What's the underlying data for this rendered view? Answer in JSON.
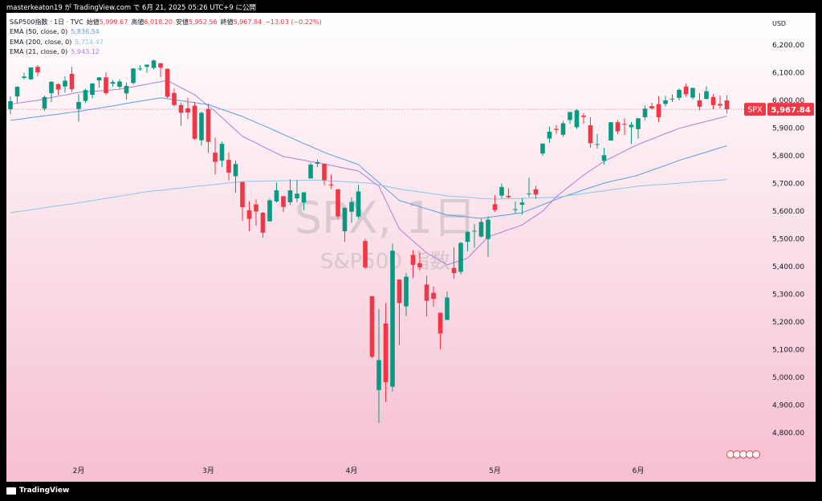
{
  "top_bar": {
    "text": "masterkeaton19 が TradingView.com で 6月 21, 2025 05:26 UTC+9 に公開"
  },
  "footer": {
    "brand": "TradingView"
  },
  "chart_data": {
    "type": "candlestick",
    "title": "S&P500指数 · 1日 · TVC",
    "legend_ohlc": [
      {
        "name": "始値",
        "value": 5999.67,
        "value_label": "5,999.67"
      },
      {
        "name": "高値",
        "value": 6018.2,
        "value_label": "6,018.20"
      },
      {
        "name": "安値",
        "value": 5952.56,
        "value_label": "5,952.56"
      },
      {
        "name": "終値",
        "value": 5967.84,
        "value_label": "5,967.84"
      }
    ],
    "change": {
      "value": -13.03,
      "label": "−13.03 (−0.22%)"
    },
    "watermark": {
      "symbol_line": "SPX, 1日",
      "name_line": "S&P500 指数"
    },
    "currency": "USD",
    "symbol": "SPX",
    "last_price": {
      "value": 5967.84,
      "label": "5,967.84"
    },
    "up_color": "#089981",
    "down_color": "#f23645",
    "categories": [
      null,
      null,
      null,
      null,
      null,
      null,
      null,
      null,
      null,
      null,
      "2月",
      null,
      null,
      null,
      null,
      null,
      null,
      null,
      null,
      null,
      null,
      null,
      null,
      null,
      null,
      null,
      null,
      null,
      null,
      "3月",
      null,
      null,
      null,
      null,
      null,
      null,
      null,
      null,
      null,
      null,
      null,
      null,
      null,
      null,
      null,
      null,
      null,
      null,
      null,
      null,
      "4月",
      null,
      null,
      null,
      null,
      null,
      null,
      null,
      null,
      null,
      null,
      null,
      null,
      null,
      null,
      null,
      null,
      null,
      null,
      null,
      null,
      "5月",
      null,
      null,
      null,
      null,
      null,
      null,
      null,
      null,
      null,
      null,
      null,
      null,
      null,
      null,
      null,
      null,
      null,
      null,
      null,
      null,
      "6月",
      null,
      null,
      null,
      null,
      null,
      null,
      null,
      null,
      null,
      null,
      null,
      null,
      null
    ],
    "open": [
      5968,
      6014,
      6081,
      6076,
      6121,
      5970,
      6026,
      6058,
      6050,
      6096,
      5969,
      5998,
      6020,
      6072,
      6083,
      6060,
      6049,
      6025,
      6063,
      6115,
      6121,
      6117,
      6134,
      6114,
      6027,
      5983,
      5971,
      5981,
      5856,
      5969,
      5811,
      5782,
      5785,
      5726,
      5705,
      5603,
      5624,
      5594,
      5563,
      5635,
      5654,
      5632,
      5646,
      5631,
      5718,
      5771,
      5771,
      5696,
      5679,
      5527,
      5598,
      5580,
      5492,
      5293,
      4954,
      5194,
      4966,
      5353,
      5256,
      5441,
      5412,
      5335,
      5305,
      5233,
      5207,
      5395,
      5381,
      5489,
      5529,
      5508,
      5499,
      5625,
      5656,
      5655,
      5605,
      5623,
      5663,
      5679,
      5808,
      5862,
      5897,
      5876,
      5929,
      5903,
      5945,
      5910,
      5841,
      5782,
      5855,
      5921,
      5915,
      5903,
      5896,
      5939,
      5979,
      5986,
      5987,
      6005,
      6009,
      6050,
      6010,
      6000,
      6005,
      6012,
      5987,
      5999.67
    ],
    "high": [
      6014,
      6051,
      6100,
      6118,
      6128,
      6017,
      6069,
      6062,
      6087,
      6121,
      6022,
      6042,
      6062,
      6084,
      6101,
      6073,
      6076,
      6064,
      6116,
      6127,
      6129,
      6147,
      6134,
      6115,
      6043,
      5992,
      6009,
      5994,
      5959,
      5987,
      5865,
      5851,
      5812,
      5783,
      5705,
      5636,
      5642,
      5597,
      5645,
      5703,
      5654,
      5715,
      5711,
      5668,
      5775,
      5786,
      5772,
      5732,
      5679,
      5612,
      5650,
      5695,
      5500,
      5293,
      5247,
      5268,
      5482,
      5353,
      5376,
      5459,
      5450,
      5367,
      5328,
      5233,
      5309,
      5469,
      5489,
      5528,
      5553,
      5572,
      5581,
      5659,
      5700,
      5683,
      5635,
      5647,
      5721,
      5691,
      5844,
      5906,
      5911,
      5925,
      5958,
      5968,
      5954,
      5939,
      5878,
      5829,
      5922,
      5929,
      5935,
      5922,
      5937,
      5981,
      5991,
      6016,
      6016,
      6021,
      6043,
      6060,
      6045,
      6026,
      6051,
      6023,
      6018,
      6018.2
    ],
    "low": [
      5950,
      5990,
      6076,
      6074,
      6088,
      5962,
      5994,
      6019,
      6028,
      6030,
      5923,
      5990,
      6007,
      6046,
      6020,
      6049,
      6042,
      6003,
      6057,
      6107,
      6099,
      6111,
      6084,
      6008,
      5977,
      5908,
      5932,
      5858,
      5837,
      5810,
      5733,
      5759,
      5711,
      5667,
      5565,
      5528,
      5547,
      5504,
      5563,
      5631,
      5597,
      5622,
      5632,
      5603,
      5718,
      5759,
      5694,
      5680,
      5572,
      5489,
      5558,
      5572,
      5391,
      5069,
      4835,
      4910,
      4949,
      5116,
      5221,
      5358,
      5386,
      5220,
      5255,
      5101,
      5207,
      5356,
      5371,
      5455,
      5468,
      5505,
      5434,
      5597,
      5647,
      5646,
      5590,
      5587,
      5651,
      5644,
      5799,
      5847,
      5879,
      5868,
      5915,
      5896,
      5916,
      5829,
      5826,
      5768,
      5854,
      5878,
      5874,
      5843,
      5862,
      5929,
      5966,
      5921,
      5978,
      5994,
      6000,
      6013,
      6003,
      5964,
      6004,
      5968,
      5971,
      5952.56
    ],
    "close": [
      5997,
      6049,
      6086,
      6119,
      6101,
      6012,
      6067,
      6039,
      6071,
      6040,
      5994,
      6037,
      6061,
      6083,
      6026,
      6066,
      6068,
      6052,
      6115,
      6115,
      6129,
      6144,
      6118,
      6013,
      5983,
      5955,
      5956,
      5861,
      5955,
      5850,
      5778,
      5843,
      5739,
      5770,
      5614,
      5572,
      5599,
      5522,
      5639,
      5675,
      5615,
      5675,
      5663,
      5668,
      5768,
      5777,
      5712,
      5693,
      5581,
      5612,
      5633,
      5671,
      5397,
      5074,
      5062,
      4982,
      5457,
      5268,
      5363,
      5406,
      5397,
      5276,
      5283,
      5158,
      5288,
      5376,
      5485,
      5525,
      5529,
      5561,
      5569,
      5604,
      5687,
      5650,
      5607,
      5631,
      5664,
      5660,
      5844,
      5887,
      5893,
      5917,
      5958,
      5964,
      5940,
      5845,
      5842,
      5802,
      5921,
      5888,
      5912,
      5912,
      5935,
      5970,
      5971,
      5939,
      6000,
      6006,
      6038,
      6022,
      6045,
      5977,
      6033,
      5983,
      5981,
      5967.84
    ],
    "lines": [
      {
        "name": "EMA (50, close, 0)",
        "color": "#5a9ee6",
        "last": {
          "value": 5836.54,
          "label": "5,836.54"
        },
        "values": [
          5928,
          5931,
          5934,
          5938,
          5941,
          5944,
          5947,
          5950,
          5954,
          5957,
          5960,
          5964,
          5968,
          5972,
          5976,
          5980,
          5984,
          5989,
          5993,
          5997,
          6001,
          6005,
          6009,
          6006,
          6002,
          5999,
          5995,
          5992,
          5988,
          5985,
          5976,
          5967,
          5959,
          5950,
          5942,
          5931,
          5920,
          5910,
          5899,
          5888,
          5877,
          5866,
          5855,
          5844,
          5834,
          5823,
          5812,
          5803,
          5794,
          5786,
          5777,
          5768,
          5746,
          5725,
          5703,
          5681,
          5660,
          5638,
          5631,
          5623,
          5616,
          5608,
          5601,
          5593,
          5586,
          5584,
          5581,
          5579,
          5576,
          5574,
          5577,
          5581,
          5584,
          5587,
          5591,
          5594,
          5604,
          5613,
          5623,
          5633,
          5642,
          5652,
          5660,
          5668,
          5677,
          5685,
          5693,
          5701,
          5707,
          5713,
          5718,
          5724,
          5730,
          5739,
          5748,
          5756,
          5765,
          5774,
          5783,
          5791,
          5798,
          5806,
          5813,
          5821,
          5829,
          5836
        ]
      },
      {
        "name": "EMA (200, close, 0)",
        "color": "#86c7e8",
        "last": {
          "value": 5714.47,
          "label": "5,714.47"
        },
        "values": [
          5594,
          5598,
          5601,
          5605,
          5608,
          5612,
          5616,
          5619,
          5623,
          5626,
          5630,
          5634,
          5638,
          5642,
          5646,
          5650,
          5654,
          5658,
          5662,
          5666,
          5670,
          5673,
          5675,
          5678,
          5681,
          5683,
          5686,
          5689,
          5691,
          5694,
          5696,
          5699,
          5702,
          5704,
          5707,
          5707,
          5708,
          5708,
          5709,
          5709,
          5710,
          5710,
          5711,
          5711,
          5712,
          5712,
          5711,
          5709,
          5708,
          5706,
          5705,
          5703,
          5702,
          5700,
          5695,
          5690,
          5685,
          5680,
          5676,
          5673,
          5669,
          5666,
          5662,
          5659,
          5655,
          5653,
          5652,
          5650,
          5648,
          5646,
          5645,
          5643,
          5644,
          5645,
          5645,
          5646,
          5647,
          5648,
          5648,
          5649,
          5650,
          5653,
          5657,
          5660,
          5663,
          5667,
          5670,
          5673,
          5677,
          5680,
          5683,
          5687,
          5690,
          5692,
          5694,
          5696,
          5697,
          5699,
          5701,
          5703,
          5705,
          5707,
          5709,
          5710,
          5712,
          5714
        ]
      },
      {
        "name": "EMA (21, close, 0)",
        "color": "#b07cd8",
        "last": {
          "value": 5943.12,
          "label": "5,943.12"
        },
        "values": [
          5986,
          5990,
          5993,
          5997,
          6000,
          6005,
          6010,
          6015,
          6019,
          6024,
          6029,
          6031,
          6033,
          6034,
          6036,
          6038,
          6040,
          6045,
          6049,
          6054,
          6058,
          6063,
          6067,
          6072,
          6059,
          6046,
          6033,
          6020,
          6000,
          5980,
          5960,
          5938,
          5915,
          5893,
          5870,
          5858,
          5846,
          5833,
          5821,
          5809,
          5797,
          5793,
          5788,
          5784,
          5779,
          5775,
          5770,
          5765,
          5760,
          5755,
          5750,
          5745,
          5727,
          5708,
          5690,
          5639,
          5587,
          5536,
          5514,
          5492,
          5471,
          5449,
          5435,
          5420,
          5406,
          5414,
          5422,
          5430,
          5456,
          5481,
          5507,
          5516,
          5524,
          5533,
          5541,
          5550,
          5567,
          5583,
          5600,
          5626,
          5652,
          5672,
          5691,
          5711,
          5730,
          5747,
          5763,
          5780,
          5792,
          5804,
          5817,
          5829,
          5841,
          5851,
          5860,
          5870,
          5880,
          5889,
          5899,
          5905,
          5912,
          5918,
          5924,
          5930,
          5937,
          5943
        ]
      }
    ],
    "ylim": [
      4701,
      6316
    ],
    "yticks": [
      {
        "value": 4800,
        "label": "4,800.00"
      },
      {
        "value": 4900,
        "label": "4,900.00"
      },
      {
        "value": 5000,
        "label": "5,000.00"
      },
      {
        "value": 5100,
        "label": "5,100.00"
      },
      {
        "value": 5200,
        "label": "5,200.00"
      },
      {
        "value": 5300,
        "label": "5,300.00"
      },
      {
        "value": 5400,
        "label": "5,400.00"
      },
      {
        "value": 5500,
        "label": "5,500.00"
      },
      {
        "value": 5600,
        "label": "5,600.00"
      },
      {
        "value": 5700,
        "label": "5,700.00"
      },
      {
        "value": 5800,
        "label": "5,800.00"
      },
      {
        "value": 5900,
        "label": "5,900.00"
      },
      {
        "value": 6000,
        "label": "6,000.00"
      },
      {
        "value": 6100,
        "label": "6,100.00"
      },
      {
        "value": 6200,
        "label": "6,200.00"
      }
    ]
  }
}
